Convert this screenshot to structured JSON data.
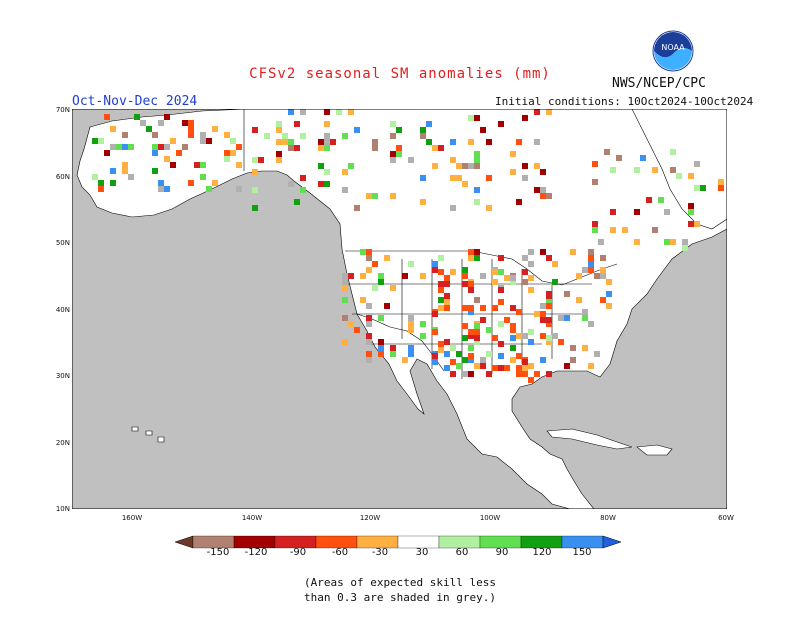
{
  "header": {
    "title": "CFSv2 seasonal SM anomalies (mm)",
    "season": "Oct-Nov-Dec 2024",
    "initial_conditions": "Initial conditions: 10Oct2024-10Oct2024",
    "org": "NWS/NCEP/CPC",
    "logo_text": "NOAA"
  },
  "map": {
    "lon_range": [
      -190,
      -60
    ],
    "lat_range": [
      10,
      70
    ],
    "lat_labels": [
      "70N",
      "60N",
      "50N",
      "40N",
      "30N",
      "20N",
      "10N"
    ],
    "lon_labels": [
      "160W",
      "140W",
      "120W",
      "100W",
      "80W",
      "60W"
    ],
    "colors": {
      "ocean": "#c0c0c0",
      "land": "#ffffff",
      "border": "#000000"
    }
  },
  "legend": {
    "ticks": [
      "-150",
      "-120",
      "-90",
      "-60",
      "-30",
      "30",
      "60",
      "90",
      "120",
      "150"
    ],
    "colors": [
      "#6b3a2a",
      "#b08070",
      "#a00000",
      "#d42020",
      "#ff5010",
      "#ffb040",
      "#ffffff",
      "#b0f0a0",
      "#60e050",
      "#10a010",
      "#3a90f0",
      "#2060e0"
    ]
  },
  "note": {
    "line1": "(Areas of expected skill less",
    "line2": "than 0.3 are shaded in grey.)"
  }
}
